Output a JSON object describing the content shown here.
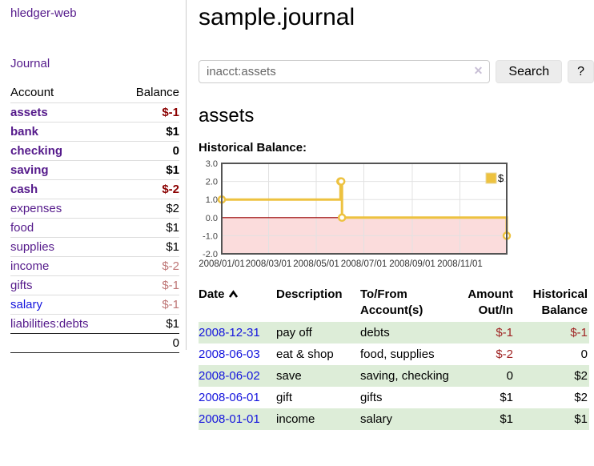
{
  "app": {
    "brand": "hledger-web"
  },
  "sidebar": {
    "journal_label": "Journal",
    "headers": [
      "Account",
      "Balance"
    ],
    "rows": [
      {
        "account": "assets",
        "balance": "$-1",
        "indent": 0,
        "bold": true,
        "negative": "strong"
      },
      {
        "account": "bank",
        "balance": "$1",
        "indent": 1,
        "bold": true,
        "negative": "none"
      },
      {
        "account": "checking",
        "balance": "0",
        "indent": 2,
        "bold": true,
        "negative": "none"
      },
      {
        "account": "saving",
        "balance": "$1",
        "indent": 2,
        "bold": true,
        "negative": "none"
      },
      {
        "account": "cash",
        "balance": "$-2",
        "indent": 1,
        "bold": true,
        "negative": "strong"
      },
      {
        "account": "expenses",
        "balance": "$2",
        "indent": 0,
        "bold": false,
        "negative": "none"
      },
      {
        "account": "food",
        "balance": "$1",
        "indent": 1,
        "bold": false,
        "negative": "none"
      },
      {
        "account": "supplies",
        "balance": "$1",
        "indent": 1,
        "bold": false,
        "negative": "none"
      },
      {
        "account": "income",
        "balance": "$-2",
        "indent": 0,
        "bold": false,
        "negative": "soft"
      },
      {
        "account": "gifts",
        "balance": "$-1",
        "indent": 1,
        "bold": false,
        "negative": "soft"
      },
      {
        "account": "salary",
        "balance": "$-1",
        "indent": 1,
        "bold": false,
        "negative": "soft"
      },
      {
        "account": "liabilities:debts",
        "balance": "$1",
        "indent": 0,
        "bold": false,
        "negative": "none"
      }
    ],
    "total": "0"
  },
  "header": {
    "title": "sample.journal"
  },
  "search": {
    "value": "inacct:assets",
    "clear_icon": "✕",
    "button_label": "Search",
    "help_label": "?"
  },
  "account_page": {
    "title": "assets",
    "chart_label": "Historical Balance:"
  },
  "chart_data": {
    "type": "line",
    "style": "step-after",
    "title": "Historical Balance",
    "xlim": [
      "2008-01-01",
      "2008-12-31"
    ],
    "ylim": [
      -2,
      3
    ],
    "y_ticks": [
      3.0,
      2.0,
      1.0,
      0.0,
      -1.0,
      -2.0
    ],
    "x_ticks": [
      {
        "label": "2008/01/01",
        "date": "2008-01-01"
      },
      {
        "label": "2008/03/01",
        "date": "2008-03-01"
      },
      {
        "label": "2008/05/01",
        "date": "2008-05-01"
      },
      {
        "label": "2008/07/01",
        "date": "2008-07-01"
      },
      {
        "label": "2008/09/01",
        "date": "2008-09-01"
      },
      {
        "label": "2008/11/01",
        "date": "2008-11-01"
      }
    ],
    "series": [
      {
        "name": "$",
        "color": "#EDC240",
        "points": [
          [
            "2008-01-01",
            1
          ],
          [
            "2008-06-01",
            2
          ],
          [
            "2008-06-02",
            2
          ],
          [
            "2008-06-03",
            0
          ],
          [
            "2008-12-31",
            -1
          ]
        ]
      }
    ],
    "legend": {
      "label": "$",
      "position": "top-right"
    },
    "grid": true,
    "zero_line_color": "#990000",
    "negative_region_color": "#FBDCDC",
    "border_color": "#545454"
  },
  "register_table": {
    "headers": {
      "date": "Date",
      "description": "Description",
      "accounts": "To/From Account(s)",
      "amount": "Amount Out/In",
      "balance": "Historical Balance"
    },
    "sort": "date-ascending",
    "rows": [
      {
        "date": "2008-12-31",
        "description": "pay off",
        "accounts": "debts",
        "amount": "$-1",
        "balance": "$-1",
        "amount_negative": true,
        "balance_negative": true
      },
      {
        "date": "2008-06-03",
        "description": "eat & shop",
        "accounts": "food, supplies",
        "amount": "$-2",
        "balance": "0",
        "amount_negative": true,
        "balance_negative": false
      },
      {
        "date": "2008-06-02",
        "description": "save",
        "accounts": "saving, checking",
        "amount": "0",
        "balance": "$2",
        "amount_negative": false,
        "balance_negative": false
      },
      {
        "date": "2008-06-01",
        "description": "gift",
        "accounts": "gifts",
        "amount": "$1",
        "balance": "$2",
        "amount_negative": false,
        "balance_negative": false
      },
      {
        "date": "2008-01-01",
        "description": "income",
        "accounts": "salary",
        "amount": "$1",
        "balance": "$1",
        "amount_negative": false,
        "balance_negative": false
      }
    ]
  },
  "colors": {
    "link_purple": "#551A8B",
    "link_blue": "#1414DD",
    "negative_strong": "#8B0000",
    "negative_soft": "#BE7676",
    "table_negative": "#A02525",
    "row_stripe_green": "#DDEDD8",
    "series_yellow": "#EDC240"
  }
}
